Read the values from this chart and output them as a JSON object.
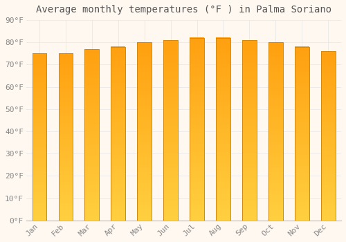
{
  "title": "Average monthly temperatures (°F ) in Palma Soriano",
  "months": [
    "Jan",
    "Feb",
    "Mar",
    "Apr",
    "May",
    "Jun",
    "Jul",
    "Aug",
    "Sep",
    "Oct",
    "Nov",
    "Dec"
  ],
  "values": [
    75,
    75,
    77,
    78,
    80,
    81,
    82,
    82,
    81,
    80,
    78,
    76
  ],
  "ylim": [
    0,
    90
  ],
  "yticks": [
    0,
    10,
    20,
    30,
    40,
    50,
    60,
    70,
    80,
    90
  ],
  "ytick_labels": [
    "0°F",
    "10°F",
    "20°F",
    "30°F",
    "40°F",
    "50°F",
    "60°F",
    "70°F",
    "80°F",
    "90°F"
  ],
  "background_color": "#FFF8F0",
  "grid_color": "#E8E8E8",
  "title_fontsize": 10,
  "tick_fontsize": 8,
  "bar_edge_color": "#D4880A",
  "bar_color_bottom": "#FFD040",
  "bar_color_top": "#FFA010",
  "bar_width": 0.55
}
